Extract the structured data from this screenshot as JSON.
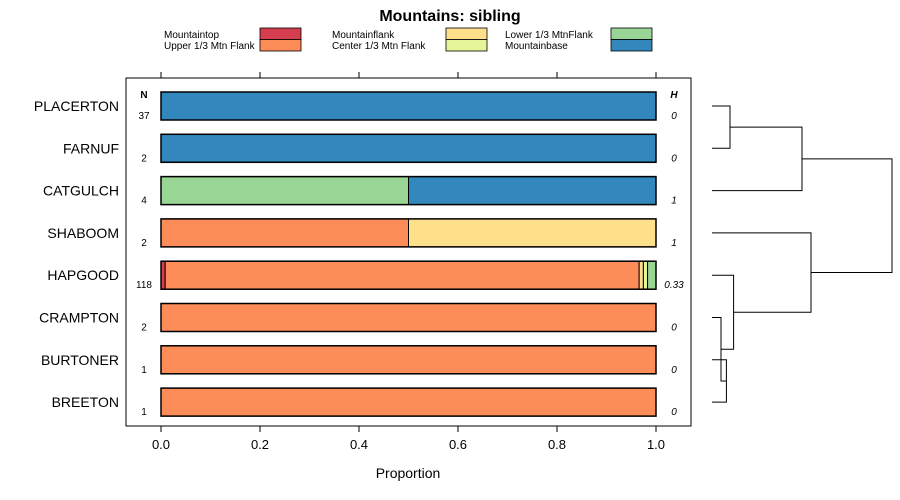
{
  "chart_data": {
    "type": "bar",
    "orientation": "horizontal",
    "stacked": true,
    "title": "Mountains: sibling",
    "xlabel": "Proportion",
    "ylabel": "",
    "xlim": [
      0,
      1
    ],
    "x_ticks": [
      "0.0",
      "0.2",
      "0.4",
      "0.6",
      "0.8",
      "1.0"
    ],
    "n_header": "N",
    "h_header": "H",
    "legend_position": "top",
    "categories": [
      {
        "key": "mountaintop",
        "name": "Mountaintop",
        "color": "#d53e4f"
      },
      {
        "key": "upper",
        "name": "Upper 1/3 Mtn Flank",
        "color": "#fc8d59"
      },
      {
        "key": "flank",
        "name": "Mountainflank",
        "color": "#fee08b"
      },
      {
        "key": "center",
        "name": "Center 1/3 Mtn Flank",
        "color": "#e6f598"
      },
      {
        "key": "lower",
        "name": "Lower 1/3 MtnFlank",
        "color": "#99d594"
      },
      {
        "key": "base",
        "name": "Mountainbase",
        "color": "#3288bd"
      }
    ],
    "rows": [
      {
        "name": "PLACERTON",
        "n": "37",
        "h": "0",
        "values": [
          0,
          0,
          0,
          0,
          0,
          1
        ]
      },
      {
        "name": "FARNUF",
        "n": "2",
        "h": "0",
        "values": [
          0,
          0,
          0,
          0,
          0,
          1
        ]
      },
      {
        "name": "CATGULCH",
        "n": "4",
        "h": "1",
        "values": [
          0,
          0,
          0,
          0,
          0.5,
          0.5
        ]
      },
      {
        "name": "SHABOOM",
        "n": "2",
        "h": "1",
        "values": [
          0,
          0.5,
          0.5,
          0,
          0,
          0
        ]
      },
      {
        "name": "HAPGOOD",
        "n": "118",
        "h": "0.33",
        "values": [
          0.0085,
          0.9575,
          0.0085,
          0.0085,
          0.017,
          0
        ]
      },
      {
        "name": "CRAMPTON",
        "n": "2",
        "h": "0",
        "values": [
          0,
          1,
          0,
          0,
          0,
          0
        ]
      },
      {
        "name": "BURTONER",
        "n": "1",
        "h": "0",
        "values": [
          0,
          1,
          0,
          0,
          0,
          0
        ]
      },
      {
        "name": "BREETON",
        "n": "1",
        "h": "0",
        "values": [
          0,
          1,
          0,
          0,
          0,
          0
        ]
      }
    ],
    "dendrogram": {
      "type": "hierarchical-clustering",
      "merges": [
        {
          "left": "PLACERTON",
          "right": "FARNUF",
          "height": 0.1
        },
        {
          "left": "BURTONER",
          "right": "BREETON",
          "height": 0.08
        },
        {
          "left": "CRAMPTON",
          "right": "BURTONER+BREETON",
          "height": 0.05
        },
        {
          "left": "HAPGOOD",
          "right": "CRAMPTON+BURTONER+BREETON",
          "height": 0.12
        },
        {
          "left": "SHABOOM",
          "right": "HAPGOOD+CRAMPTON+BURTONER+BREETON",
          "height": 0.55
        },
        {
          "left": "PLACERTON+FARNUF",
          "right": "CATGULCH",
          "height": 0.5
        },
        {
          "left": "PLACERTON+FARNUF+CATGULCH",
          "right": "SHABOOM+HAPGOOD+CRAMPTON+BURTONER+BREETON",
          "height": 1.0
        }
      ]
    }
  }
}
